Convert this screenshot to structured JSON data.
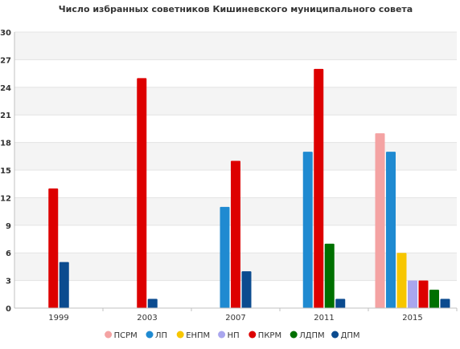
{
  "chart_data": {
    "type": "bar",
    "title": "Число избранных советников Кишиневского муниципального совета",
    "xlabel": "",
    "ylabel": "",
    "categories": [
      "1999",
      "2003",
      "2007",
      "2011",
      "2015"
    ],
    "ylim": [
      0,
      30
    ],
    "yticks": [
      0,
      3,
      6,
      9,
      12,
      15,
      18,
      21,
      24,
      27,
      30
    ],
    "grid": true,
    "legend_position": "bottom",
    "series": [
      {
        "name": "ПСРМ",
        "color": "#f4a3a3",
        "values": [
          0,
          0,
          0,
          0,
          19
        ]
      },
      {
        "name": "ЛП",
        "color": "#1f8ad1",
        "values": [
          0,
          0,
          11,
          17,
          17
        ]
      },
      {
        "name": "ЕНПМ",
        "color": "#f7c600",
        "values": [
          0,
          0,
          0,
          0,
          6
        ]
      },
      {
        "name": "НП",
        "color": "#a9a6ee",
        "values": [
          0,
          0,
          0,
          0,
          3
        ]
      },
      {
        "name": "ПКРМ",
        "color": "#dd0000",
        "values": [
          13,
          25,
          16,
          26,
          3
        ]
      },
      {
        "name": "ЛДПМ",
        "color": "#007000",
        "values": [
          0,
          0,
          0,
          7,
          2
        ]
      },
      {
        "name": "ДПМ",
        "color": "#0b4b8f",
        "values": [
          5,
          1,
          4,
          1,
          1
        ]
      }
    ]
  }
}
